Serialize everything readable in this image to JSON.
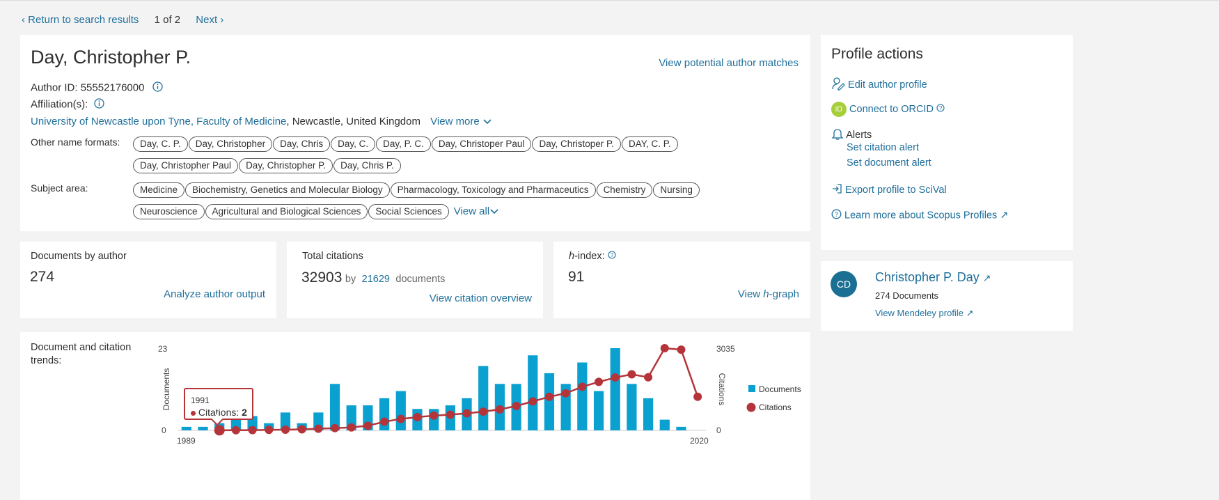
{
  "nav": {
    "back": "Return to search results",
    "position": "1 of 2",
    "next": "Next"
  },
  "author": {
    "name": "Day, Christopher P.",
    "matches_link": "View potential author matches",
    "id_label": "Author ID: 55552176000",
    "affiliation_label": "Affiliation(s):",
    "affiliation_link": "University of Newcastle upon Tyne, Faculty of Medicine",
    "affiliation_rest": ", Newcastle, United Kingdom",
    "view_more": "View more",
    "other_names_label": "Other name formats:",
    "other_names": [
      "Day, C. P.",
      "Day, Christopher",
      "Day, Chris",
      "Day, C.",
      "Day, P. C.",
      "Day, Christoper Paul",
      "Day, Christoper P.",
      "DAY, C. P.",
      "Day, Christopher Paul",
      "Day, Christopher P.",
      "Day, Chris P."
    ],
    "subject_label": "Subject area:",
    "subjects": [
      "Medicine",
      "Biochemistry, Genetics and Molecular Biology",
      "Pharmacology, Toxicology and Pharmaceutics",
      "Chemistry",
      "Nursing",
      "Neuroscience",
      "Agricultural and Biological Sciences",
      "Social Sciences"
    ],
    "view_all": "View all"
  },
  "metrics": {
    "docs_label": "Documents by author",
    "docs_value": "274",
    "docs_link": "Analyze author output",
    "cit_label": "Total citations",
    "cit_value": "32903",
    "cit_by": "by",
    "cit_docs": "21629",
    "cit_docs_word": "documents",
    "cit_link": "View citation overview",
    "h_label_italic": "h",
    "h_label_rest": "-index:",
    "h_value": "91",
    "h_link_pre": "View ",
    "h_link_italic": "h",
    "h_link_post": "-graph"
  },
  "trends": {
    "label": "Document and citation trends:",
    "tooltip_year": "1991",
    "tooltip_text": "Citations: ",
    "tooltip_value": "2"
  },
  "profile_actions": {
    "title": "Profile actions",
    "edit": "Edit author profile",
    "orcid": "Connect to ORCID",
    "alerts": "Alerts",
    "citation_alert": "Set citation alert",
    "document_alert": "Set document alert",
    "export": "Export profile to SciVal",
    "learn": "Learn more about Scopus Profiles"
  },
  "mendeley": {
    "initials": "CD",
    "name": "Christopher P. Day",
    "docs": "274 Documents",
    "link": "View Mendeley profile"
  },
  "colors": {
    "link": "#1f6f9b",
    "bar": "#0aa0d0",
    "line": "#b5343a",
    "avatar": "#1a6f93",
    "orcid": "#a6ce39"
  },
  "chart_data": {
    "type": "bar+line",
    "x_start_label": "1989",
    "x_end_label": "2020",
    "ylabel_left": "Documents",
    "ylabel_right": "Citations",
    "yleft_ticks": [
      "0",
      "23"
    ],
    "yright_ticks": [
      "0",
      "3035"
    ],
    "ylim_left": [
      0,
      23
    ],
    "ylim_right": [
      0,
      3035
    ],
    "legend": [
      "Documents",
      "Citations"
    ],
    "legend_position": "right",
    "x": [
      1989,
      1990,
      1991,
      1992,
      1993,
      1994,
      1995,
      1996,
      1997,
      1998,
      1999,
      2000,
      2001,
      2002,
      2003,
      2004,
      2005,
      2006,
      2007,
      2008,
      2009,
      2010,
      2011,
      2012,
      2013,
      2014,
      2015,
      2016,
      2017,
      2018,
      2019,
      2020
    ],
    "series": [
      {
        "name": "Documents",
        "kind": "bar",
        "values": [
          1,
          1,
          2,
          3,
          4,
          2,
          5,
          2,
          5,
          13,
          7,
          7,
          9,
          11,
          6,
          6,
          7,
          9,
          18,
          13,
          13,
          21,
          16,
          13,
          19,
          11,
          23,
          13,
          9,
          3,
          1,
          0
        ]
      },
      {
        "name": "Citations",
        "kind": "line",
        "values": [
          null,
          null,
          2,
          5,
          10,
          18,
          25,
          38,
          60,
          82,
          110,
          170,
          320,
          420,
          490,
          545,
          580,
          630,
          690,
          775,
          900,
          1070,
          1240,
          1370,
          1610,
          1790,
          1950,
          2070,
          1960,
          3035,
          2980,
          1240
        ]
      }
    ]
  }
}
